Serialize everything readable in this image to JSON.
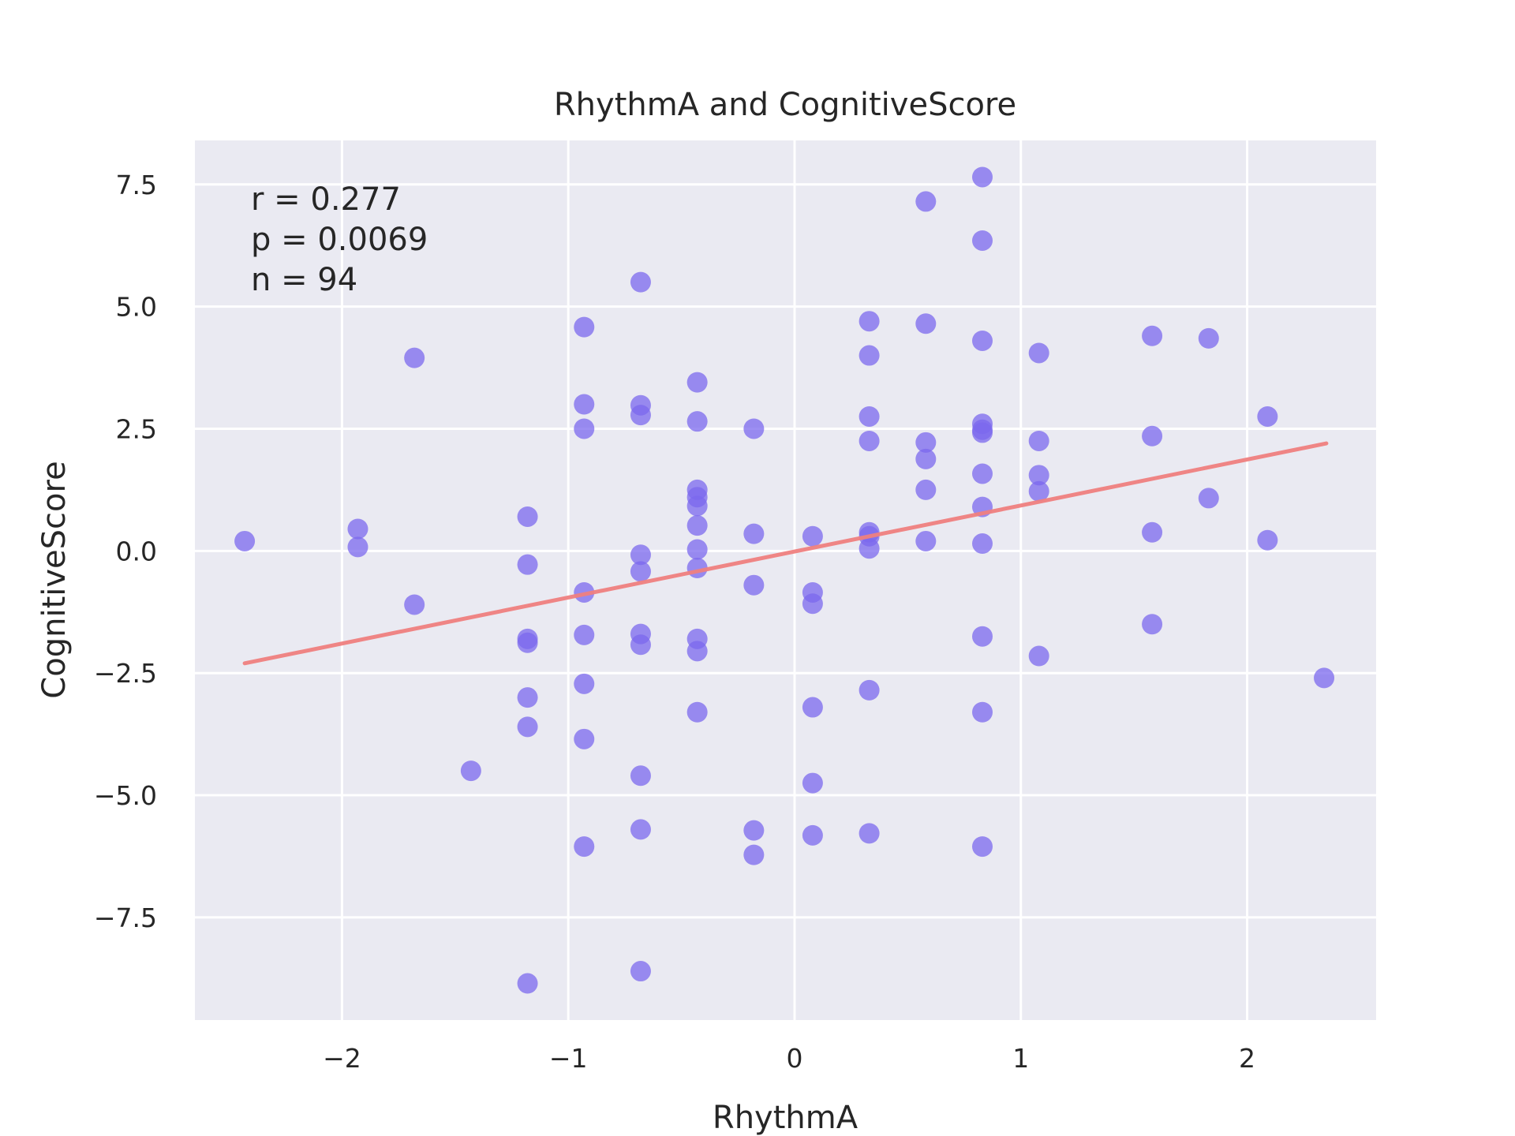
{
  "chart_data": {
    "type": "scatter",
    "title": "RhythmA and CognitiveScore",
    "xlabel": "RhythmA",
    "ylabel": "CognitiveScore",
    "xlim": [
      -2.65,
      2.57
    ],
    "ylim": [
      -9.6,
      8.4
    ],
    "xticks": [
      -2,
      -1,
      0,
      1,
      2
    ],
    "xtick_labels": [
      "−2",
      "−1",
      "0",
      "1",
      "2"
    ],
    "yticks": [
      -7.5,
      -5.0,
      -2.5,
      0.0,
      2.5,
      5.0,
      7.5
    ],
    "ytick_labels": [
      "−7.5",
      "−5.0",
      "−2.5",
      "0.0",
      "2.5",
      "5.0",
      "7.5"
    ],
    "grid": true,
    "background": "#eaeaf2",
    "point_color": "#7b68ee",
    "line_color": "#f08080",
    "annotations": [
      "r = 0.277",
      "p = 0.0069",
      "n = 94"
    ],
    "regression": {
      "x": [
        -2.43,
        2.35
      ],
      "y": [
        -2.3,
        2.2
      ]
    },
    "points": [
      {
        "x": -2.43,
        "y": 0.2
      },
      {
        "x": -1.93,
        "y": 0.45
      },
      {
        "x": -1.93,
        "y": 0.08
      },
      {
        "x": -1.68,
        "y": 3.95
      },
      {
        "x": -1.68,
        "y": -1.1
      },
      {
        "x": -1.43,
        "y": -4.5
      },
      {
        "x": -1.18,
        "y": 0.7
      },
      {
        "x": -1.18,
        "y": -0.28
      },
      {
        "x": -1.18,
        "y": -1.8
      },
      {
        "x": -1.18,
        "y": -1.88
      },
      {
        "x": -1.18,
        "y": -3.0
      },
      {
        "x": -1.18,
        "y": -3.6
      },
      {
        "x": -1.18,
        "y": -8.85
      },
      {
        "x": -0.93,
        "y": 4.58
      },
      {
        "x": -0.93,
        "y": 3.0
      },
      {
        "x": -0.93,
        "y": 2.5
      },
      {
        "x": -0.93,
        "y": -0.85
      },
      {
        "x": -0.93,
        "y": -1.72
      },
      {
        "x": -0.93,
        "y": -2.72
      },
      {
        "x": -0.93,
        "y": -3.85
      },
      {
        "x": -0.93,
        "y": -6.05
      },
      {
        "x": -0.68,
        "y": 5.5
      },
      {
        "x": -0.68,
        "y": 2.98
      },
      {
        "x": -0.68,
        "y": 2.78
      },
      {
        "x": -0.68,
        "y": -0.08
      },
      {
        "x": -0.68,
        "y": -0.42
      },
      {
        "x": -0.68,
        "y": -1.7
      },
      {
        "x": -0.68,
        "y": -1.92
      },
      {
        "x": -0.68,
        "y": -4.6
      },
      {
        "x": -0.68,
        "y": -5.7
      },
      {
        "x": -0.68,
        "y": -8.6
      },
      {
        "x": -0.43,
        "y": 3.45
      },
      {
        "x": -0.43,
        "y": 2.65
      },
      {
        "x": -0.43,
        "y": 1.25
      },
      {
        "x": -0.43,
        "y": 1.1
      },
      {
        "x": -0.43,
        "y": 0.92
      },
      {
        "x": -0.43,
        "y": 0.52
      },
      {
        "x": -0.43,
        "y": 0.03
      },
      {
        "x": -0.43,
        "y": -0.35
      },
      {
        "x": -0.43,
        "y": -1.8
      },
      {
        "x": -0.43,
        "y": -2.05
      },
      {
        "x": -0.43,
        "y": -3.3
      },
      {
        "x": -0.18,
        "y": 2.5
      },
      {
        "x": -0.18,
        "y": 0.35
      },
      {
        "x": -0.18,
        "y": -0.7
      },
      {
        "x": -0.18,
        "y": -5.72
      },
      {
        "x": -0.18,
        "y": -6.22
      },
      {
        "x": 0.08,
        "y": 0.3
      },
      {
        "x": 0.08,
        "y": -0.85
      },
      {
        "x": 0.08,
        "y": -1.08
      },
      {
        "x": 0.08,
        "y": -3.2
      },
      {
        "x": 0.08,
        "y": -4.75
      },
      {
        "x": 0.08,
        "y": -5.82
      },
      {
        "x": 0.33,
        "y": 4.7
      },
      {
        "x": 0.33,
        "y": 4.0
      },
      {
        "x": 0.33,
        "y": 2.75
      },
      {
        "x": 0.33,
        "y": 2.25
      },
      {
        "x": 0.33,
        "y": 0.38
      },
      {
        "x": 0.33,
        "y": 0.3
      },
      {
        "x": 0.33,
        "y": 0.05
      },
      {
        "x": 0.33,
        "y": -2.85
      },
      {
        "x": 0.33,
        "y": -5.78
      },
      {
        "x": 0.58,
        "y": 7.15
      },
      {
        "x": 0.58,
        "y": 4.65
      },
      {
        "x": 0.58,
        "y": 2.22
      },
      {
        "x": 0.58,
        "y": 1.88
      },
      {
        "x": 0.58,
        "y": 1.25
      },
      {
        "x": 0.58,
        "y": 0.2
      },
      {
        "x": 0.83,
        "y": 7.65
      },
      {
        "x": 0.83,
        "y": 6.35
      },
      {
        "x": 0.83,
        "y": 4.3
      },
      {
        "x": 0.83,
        "y": 2.6
      },
      {
        "x": 0.83,
        "y": 2.48
      },
      {
        "x": 0.83,
        "y": 2.42
      },
      {
        "x": 0.83,
        "y": 1.58
      },
      {
        "x": 0.83,
        "y": 0.9
      },
      {
        "x": 0.83,
        "y": 0.15
      },
      {
        "x": 0.83,
        "y": -1.75
      },
      {
        "x": 0.83,
        "y": -3.3
      },
      {
        "x": 0.83,
        "y": -6.05
      },
      {
        "x": 1.08,
        "y": 4.05
      },
      {
        "x": 1.08,
        "y": 2.25
      },
      {
        "x": 1.08,
        "y": 1.55
      },
      {
        "x": 1.08,
        "y": 1.22
      },
      {
        "x": 1.08,
        "y": -2.15
      },
      {
        "x": 1.58,
        "y": 4.4
      },
      {
        "x": 1.58,
        "y": 2.35
      },
      {
        "x": 1.58,
        "y": 0.38
      },
      {
        "x": 1.58,
        "y": -1.5
      },
      {
        "x": 1.83,
        "y": 4.35
      },
      {
        "x": 1.83,
        "y": 1.08
      },
      {
        "x": 2.09,
        "y": 2.75
      },
      {
        "x": 2.09,
        "y": 0.22
      },
      {
        "x": 2.34,
        "y": -2.6
      }
    ]
  }
}
